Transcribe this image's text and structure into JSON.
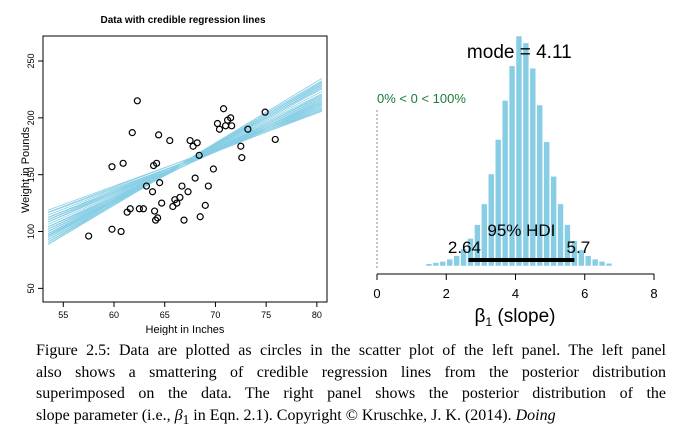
{
  "chart_data": [
    {
      "type": "scatter",
      "title": "Data with credible regression lines",
      "xlabel": "Height in Inches",
      "ylabel": "Weight in Pounds",
      "xlim": [
        53,
        81
      ],
      "ylim": [
        38,
        272
      ],
      "x_ticks": [
        "55",
        "60",
        "65",
        "70",
        "75",
        "80"
      ],
      "y_ticks": [
        "50",
        "100",
        "150",
        "200",
        "250"
      ],
      "grid": false,
      "points": [
        {
          "x": 57.5,
          "y": 96
        },
        {
          "x": 59.8,
          "y": 102
        },
        {
          "x": 60.7,
          "y": 100
        },
        {
          "x": 59.8,
          "y": 157
        },
        {
          "x": 60.9,
          "y": 160
        },
        {
          "x": 61.3,
          "y": 117
        },
        {
          "x": 61.6,
          "y": 120
        },
        {
          "x": 61.8,
          "y": 187
        },
        {
          "x": 62.3,
          "y": 215
        },
        {
          "x": 62.5,
          "y": 120
        },
        {
          "x": 62.9,
          "y": 120
        },
        {
          "x": 63.2,
          "y": 140
        },
        {
          "x": 63.8,
          "y": 135
        },
        {
          "x": 63.9,
          "y": 158
        },
        {
          "x": 64.0,
          "y": 118
        },
        {
          "x": 64.1,
          "y": 110
        },
        {
          "x": 64.3,
          "y": 112
        },
        {
          "x": 64.2,
          "y": 160
        },
        {
          "x": 64.5,
          "y": 143
        },
        {
          "x": 64.7,
          "y": 125
        },
        {
          "x": 64.4,
          "y": 185
        },
        {
          "x": 65.5,
          "y": 180
        },
        {
          "x": 65.8,
          "y": 122
        },
        {
          "x": 66.0,
          "y": 128
        },
        {
          "x": 66.2,
          "y": 125
        },
        {
          "x": 66.5,
          "y": 130
        },
        {
          "x": 66.7,
          "y": 140
        },
        {
          "x": 66.9,
          "y": 110
        },
        {
          "x": 67.3,
          "y": 135
        },
        {
          "x": 67.5,
          "y": 180
        },
        {
          "x": 67.8,
          "y": 175
        },
        {
          "x": 68.0,
          "y": 147
        },
        {
          "x": 68.2,
          "y": 178
        },
        {
          "x": 68.4,
          "y": 167
        },
        {
          "x": 68.5,
          "y": 113
        },
        {
          "x": 69.0,
          "y": 123
        },
        {
          "x": 69.3,
          "y": 140
        },
        {
          "x": 69.8,
          "y": 155
        },
        {
          "x": 70.2,
          "y": 195
        },
        {
          "x": 70.4,
          "y": 190
        },
        {
          "x": 70.8,
          "y": 208
        },
        {
          "x": 71.0,
          "y": 193
        },
        {
          "x": 71.2,
          "y": 198
        },
        {
          "x": 71.5,
          "y": 200
        },
        {
          "x": 71.6,
          "y": 193
        },
        {
          "x": 72.5,
          "y": 175
        },
        {
          "x": 72.6,
          "y": 165
        },
        {
          "x": 73.2,
          "y": 190
        },
        {
          "x": 74.9,
          "y": 205
        },
        {
          "x": 75.9,
          "y": 181
        }
      ],
      "regression_color": "#87cee5",
      "regression_lines": [
        {
          "intercept": -150,
          "slope": 4.6
        },
        {
          "intercept": -130,
          "slope": 4.3
        },
        {
          "intercept": -110,
          "slope": 4.0
        },
        {
          "intercept": -95,
          "slope": 3.8
        },
        {
          "intercept": -80,
          "slope": 3.6
        },
        {
          "intercept": -70,
          "slope": 3.45
        },
        {
          "intercept": -60,
          "slope": 3.3
        },
        {
          "intercept": -160,
          "slope": 4.8
        },
        {
          "intercept": -175,
          "slope": 5.0
        },
        {
          "intercept": -120,
          "slope": 4.15
        },
        {
          "intercept": -140,
          "slope": 4.45
        },
        {
          "intercept": -100,
          "slope": 3.9
        },
        {
          "intercept": -185,
          "slope": 5.15
        },
        {
          "intercept": -195,
          "slope": 5.3
        },
        {
          "intercept": -85,
          "slope": 3.65
        },
        {
          "intercept": -200,
          "slope": 5.4
        },
        {
          "intercept": -135,
          "slope": 4.4
        },
        {
          "intercept": -115,
          "slope": 4.1
        },
        {
          "intercept": -155,
          "slope": 4.7
        },
        {
          "intercept": -105,
          "slope": 3.95
        },
        {
          "intercept": -165,
          "slope": 4.85
        },
        {
          "intercept": -90,
          "slope": 3.75
        },
        {
          "intercept": -75,
          "slope": 3.5
        },
        {
          "intercept": -125,
          "slope": 4.25
        },
        {
          "intercept": -145,
          "slope": 4.55
        },
        {
          "intercept": -170,
          "slope": 4.95
        },
        {
          "intercept": -65,
          "slope": 3.4
        },
        {
          "intercept": -180,
          "slope": 5.1
        },
        {
          "intercept": -55,
          "slope": 3.25
        },
        {
          "intercept": -190,
          "slope": 5.25
        }
      ]
    },
    {
      "type": "bar",
      "xlabel_main": "β",
      "xlabel_sub": "1",
      "xlabel_rest": " (slope)",
      "xlim": [
        0,
        8
      ],
      "x_ticks": [
        "0",
        "2",
        "4",
        "6",
        "8"
      ],
      "bar_color": "#87cee5",
      "bin_width": 0.2,
      "bins": [
        {
          "x": 1.5,
          "density": 0.01
        },
        {
          "x": 1.7,
          "density": 0.015
        },
        {
          "x": 1.9,
          "density": 0.02
        },
        {
          "x": 2.1,
          "density": 0.03
        },
        {
          "x": 2.3,
          "density": 0.045
        },
        {
          "x": 2.5,
          "density": 0.075
        },
        {
          "x": 2.7,
          "density": 0.12
        },
        {
          "x": 2.9,
          "density": 0.18
        },
        {
          "x": 3.1,
          "density": 0.27
        },
        {
          "x": 3.3,
          "density": 0.4
        },
        {
          "x": 3.5,
          "density": 0.55
        },
        {
          "x": 3.7,
          "density": 0.72
        },
        {
          "x": 3.9,
          "density": 0.87
        },
        {
          "x": 4.1,
          "density": 1.0
        },
        {
          "x": 4.3,
          "density": 0.97
        },
        {
          "x": 4.5,
          "density": 0.86
        },
        {
          "x": 4.7,
          "density": 0.7
        },
        {
          "x": 4.9,
          "density": 0.54
        },
        {
          "x": 5.1,
          "density": 0.39
        },
        {
          "x": 5.3,
          "density": 0.27
        },
        {
          "x": 5.5,
          "density": 0.18
        },
        {
          "x": 5.7,
          "density": 0.11
        },
        {
          "x": 5.9,
          "density": 0.07
        },
        {
          "x": 6.1,
          "density": 0.045
        },
        {
          "x": 6.3,
          "density": 0.03
        },
        {
          "x": 6.5,
          "density": 0.02
        },
        {
          "x": 6.7,
          "density": 0.012
        }
      ],
      "mode_label": "mode = 4.11",
      "comparison_label": "0% < 0 < 100%",
      "comparison_value": 0,
      "comparison_color": "#1e7a3a",
      "hdi_label": "95% HDI",
      "hdi_low": 2.64,
      "hdi_high": 5.7,
      "hdi_low_label": "2.64",
      "hdi_high_label": "5.7"
    }
  ],
  "caption": {
    "line1": "Figure 2.5: Data are plotted as circles in the scatter plot of the left panel. The left panel",
    "line2": "also shows a smattering of credible regression lines from the posterior distribution",
    "line3": "superimposed on the data.  The right panel shows the posterior distribution of the",
    "line4_a": "slope parameter (i.e., ",
    "line4_b": "β",
    "line4_c": "1",
    "line4_d": " in Eqn. 2.1).   Copyright © Kruschke, J. K. (2014). ",
    "line4_e": "Doing"
  }
}
